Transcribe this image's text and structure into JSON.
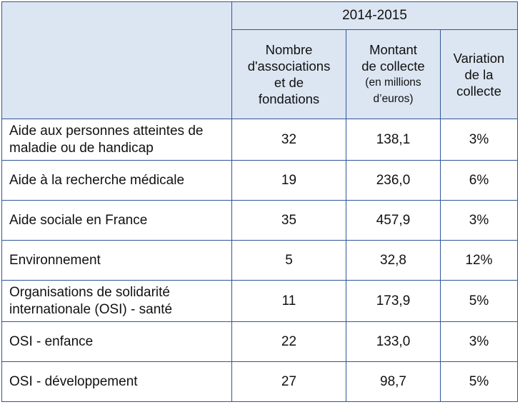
{
  "header": {
    "period": "2014-2015",
    "columns": [
      {
        "line1": "Nombre",
        "line2": "d'associations",
        "line3": "et de",
        "line4": "fondations"
      },
      {
        "line1": "Montant",
        "line2": "de collecte",
        "line3": "(en millions",
        "line4": "d’euros)"
      },
      {
        "line1": "Variation",
        "line2": "de la",
        "line3": "collecte"
      }
    ]
  },
  "rows": [
    {
      "label": "Aide aux personnes atteintes de maladie ou de  handicap",
      "nombre": "32",
      "montant": "138,1",
      "variation": "3%"
    },
    {
      "label": "Aide à la recherche médicale",
      "nombre": "19",
      "montant": "236,0",
      "variation": "6%"
    },
    {
      "label": "Aide sociale en France",
      "nombre": "35",
      "montant": "457,9",
      "variation": "3%"
    },
    {
      "label": "Environnement",
      "nombre": "5",
      "montant": "32,8",
      "variation": "12%"
    },
    {
      "label": "Organisations de solidarité internationale (OSI)  - santé",
      "nombre": "11",
      "montant": "173,9",
      "variation": "5%"
    },
    {
      "label": "OSI - enfance",
      "nombre": "22",
      "montant": "133,0",
      "variation": "3%"
    },
    {
      "label": "OSI - développement",
      "nombre": "27",
      "montant": "98,7",
      "variation": "5%"
    }
  ]
}
